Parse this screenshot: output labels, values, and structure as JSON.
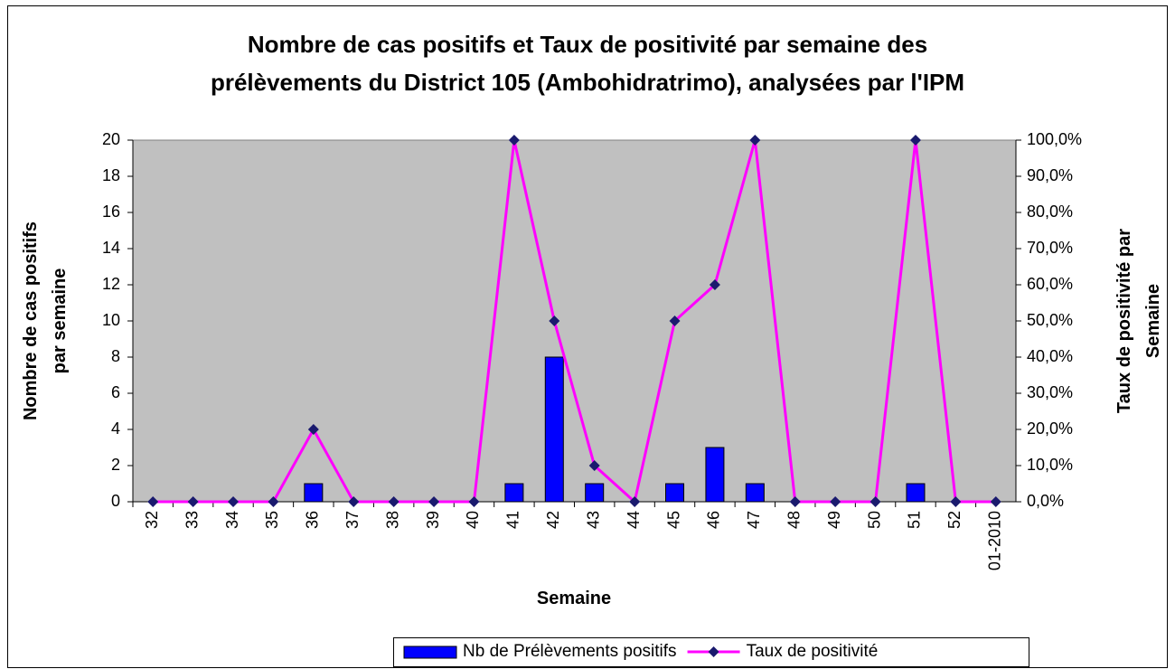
{
  "chart_data": {
    "type": "bar-line",
    "title": [
      "Nombre de cas positifs et Taux de positivité par semaine des",
      "prélèvements du District 105 (Ambohidratrimo), analysées par l'IPM"
    ],
    "ylabel": [
      "Nombre de cas positifs",
      "par semaine"
    ],
    "y2label": [
      "Taux de positivité par",
      "Semaine"
    ],
    "xlabel": "Semaine",
    "categories": [
      "32",
      "33",
      "34",
      "35",
      "36",
      "37",
      "38",
      "39",
      "40",
      "41",
      "42",
      "43",
      "44",
      "45",
      "46",
      "47",
      "48",
      "49",
      "50",
      "51",
      "52",
      "01-2010"
    ],
    "series": [
      {
        "name": "Nb de Prélèvements positifs",
        "type": "bar",
        "color": "#0000ff",
        "values": [
          0,
          0,
          0,
          0,
          1,
          0,
          0,
          0,
          0,
          1,
          8,
          1,
          0,
          1,
          3,
          1,
          0,
          0,
          0,
          1,
          0,
          0
        ]
      },
      {
        "name": "Taux de positivité",
        "type": "line",
        "axis": "y2",
        "color": "#ff00ff",
        "marker_color": "#1a1a6e",
        "values": [
          0,
          0,
          0,
          0,
          20,
          0,
          0,
          0,
          0,
          100,
          50,
          10,
          0,
          50,
          60,
          100,
          0,
          0,
          0,
          100,
          0,
          0
        ]
      }
    ],
    "ylim": [
      0,
      20
    ],
    "yticks": [
      0,
      2,
      4,
      6,
      8,
      10,
      12,
      14,
      16,
      18,
      20
    ],
    "y2lim": [
      0,
      100
    ],
    "y2ticks": [
      {
        "value": 0,
        "label": "0,0%"
      },
      {
        "value": 10,
        "label": "10,0%"
      },
      {
        "value": 20,
        "label": "20,0%"
      },
      {
        "value": 30,
        "label": "30,0%"
      },
      {
        "value": 40,
        "label": "40,0%"
      },
      {
        "value": 50,
        "label": "50,0%"
      },
      {
        "value": 60,
        "label": "60,0%"
      },
      {
        "value": 70,
        "label": "70,0%"
      },
      {
        "value": 80,
        "label": "80,0%"
      },
      {
        "value": 90,
        "label": "90,0%"
      },
      {
        "value": 100,
        "label": "100,0%"
      }
    ],
    "grid": false,
    "plot_background": "#c0c0c0",
    "legend": "bottom"
  }
}
